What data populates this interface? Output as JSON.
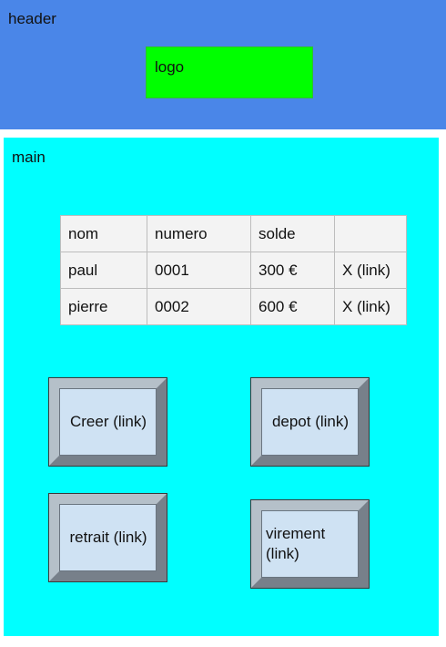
{
  "header": {
    "label": "header",
    "logo_label": "logo"
  },
  "main": {
    "label": "main",
    "table": {
      "headers": [
        "nom",
        "numero",
        "solde",
        ""
      ],
      "rows": [
        [
          "paul",
          "0001",
          "300 €",
          "X (link)"
        ],
        [
          "pierre",
          "0002",
          "600 €",
          "X (link)"
        ]
      ]
    },
    "buttons": {
      "creer": "Creer (link)",
      "depot": "depot (link)",
      "retrait": "retrait (link)",
      "virement": "virement (link)"
    }
  },
  "colors": {
    "header_bg": "#4a86e8",
    "logo_bg": "#00ff00",
    "main_bg": "#00ffff",
    "table_bg": "#f3f3f3",
    "button_bg": "#cfe2f3"
  }
}
